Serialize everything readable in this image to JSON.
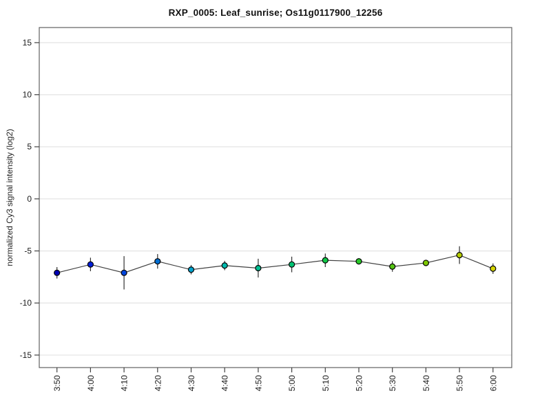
{
  "title": "RXP_0005: Leaf_sunrise; Os11g0117900_12256",
  "chart_data": {
    "type": "line",
    "title": "RXP_0005: Leaf_sunrise; Os11g0117900_12256",
    "xlabel": "",
    "ylabel": "normalized Cy3 signal intensity (log2)",
    "categories": [
      "3:50",
      "4:00",
      "4:10",
      "4:20",
      "4:30",
      "4:40",
      "4:50",
      "5:00",
      "5:10",
      "5:20",
      "5:30",
      "5:40",
      "5:50",
      "6:00"
    ],
    "series": [
      {
        "name": "normalized Cy3 signal intensity (log2)",
        "values": [
          -7.1,
          -6.3,
          -7.1,
          -6.0,
          -6.8,
          -6.4,
          -6.65,
          -6.3,
          -5.9,
          -6.0,
          -6.5,
          -6.15,
          -5.4,
          -6.7
        ],
        "errors": [
          0.55,
          0.65,
          1.6,
          0.7,
          0.45,
          0.45,
          0.9,
          0.75,
          0.65,
          0.3,
          0.5,
          0.25,
          0.85,
          0.5
        ]
      }
    ],
    "point_colors": [
      "#0000b4",
      "#001ed7",
      "#0046dc",
      "#006ed2",
      "#00a2cc",
      "#00b9ae",
      "#00be91",
      "#00c373",
      "#0fc846",
      "#28c828",
      "#55c414",
      "#7dc800",
      "#b4cc00",
      "#d4d400"
    ],
    "yticks": [
      15,
      10,
      5,
      0,
      -5,
      -10,
      -15
    ],
    "ylim": [
      -16.2,
      16.45
    ],
    "grid": "horizontal",
    "legend_position": "none",
    "style": {
      "line_color": "#404040",
      "error_bar_color": "#303030",
      "marker_outline": "#000000",
      "grid_color": "#e5e5e5",
      "frame_color": "#606060",
      "tick_color": "#404040",
      "text_color": "#1a1a1a",
      "background": "#ffffff"
    }
  }
}
